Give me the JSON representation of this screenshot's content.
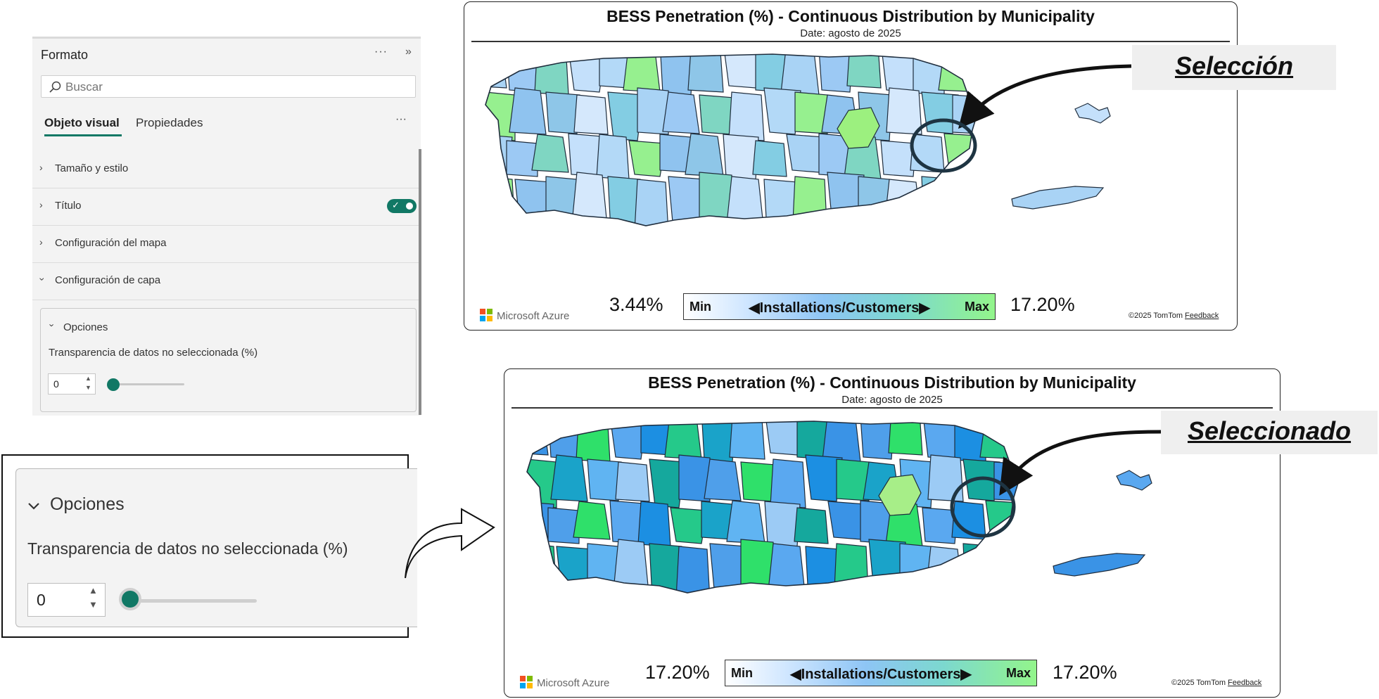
{
  "format_pane": {
    "title": "Formato",
    "more_icon": "more-icon",
    "collapse_icon": "chevron-double-right-icon",
    "search": {
      "placeholder": "Buscar",
      "icon": "search-icon"
    },
    "tabs": [
      {
        "label": "Objeto visual",
        "active": true
      },
      {
        "label": "Propiedades",
        "active": false
      }
    ],
    "sections": [
      {
        "label": "Tamaño y estilo",
        "expanded": false
      },
      {
        "label": "Título",
        "expanded": false,
        "toggle_on": true
      },
      {
        "label": "Configuración del mapa",
        "expanded": false
      },
      {
        "label": "Configuración de capa",
        "expanded": true
      }
    ],
    "options_card": {
      "title": "Opciones",
      "description": "Transparencia de datos no seleccionada (%)",
      "value": "0",
      "slider_fraction": 0
    },
    "accent_color": "#117865"
  },
  "zoom_panel": {
    "title": "Opciones",
    "description": "Transparencia de datos no seleccionada (%)",
    "value": "0",
    "slider_fraction": 0
  },
  "map_top": {
    "title": "BESS Penetration (%) - Continuous Distribution by Municipality",
    "subtitle": "Date: agosto de 2025",
    "azure_label": "Microsoft Azure",
    "min_value": "3.44%",
    "max_value": "17.20%",
    "legend": {
      "min": "Min",
      "center": "◀Installations/Customers▶",
      "max": "Max"
    },
    "copyright": "©2025 TomTom",
    "feedback": "Feedback",
    "callout": "Selección"
  },
  "map_bottom": {
    "title": "BESS Penetration (%) - Continuous Distribution by Municipality",
    "subtitle": "Date: agosto de 2025",
    "azure_label": "Microsoft Azure",
    "min_value": "17.20%",
    "max_value": "17.20%",
    "legend": {
      "min": "Min",
      "center": "◀Installations/Customers▶",
      "max": "Max"
    },
    "copyright": "©2025 TomTom",
    "feedback": "Feedback",
    "callout": "Seleccionado"
  },
  "palettes": {
    "top": [
      "#a9d3f5",
      "#c4e0fb",
      "#8fc3ef",
      "#83cde3",
      "#7fd6c2",
      "#96f08f",
      "#d5e8fc",
      "#9cc9f4",
      "#b3d9f7",
      "#8ec6e8"
    ],
    "bottom": [
      "#3a93e6",
      "#5aa8f0",
      "#1aa3c9",
      "#15a89d",
      "#2fe06a",
      "#25c98a",
      "#9ccbf5",
      "#4f9fea",
      "#1c8fe2",
      "#60b4f2"
    ],
    "selected_top": "#9cf07f",
    "selected_bottom": "#a7ee88"
  }
}
